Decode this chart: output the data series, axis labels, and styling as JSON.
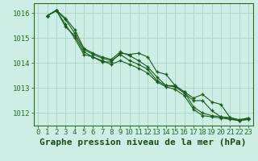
{
  "background_color": "#cceee4",
  "grid_color": "#aad4c8",
  "line_color": "#1a5c1a",
  "marker_color": "#1a5c1a",
  "xlim": [
    -0.5,
    23.5
  ],
  "ylim": [
    1011.5,
    1016.4
  ],
  "yticks": [
    1012,
    1013,
    1014,
    1015,
    1016
  ],
  "xticks": [
    0,
    1,
    2,
    3,
    4,
    5,
    6,
    7,
    8,
    9,
    10,
    11,
    12,
    13,
    14,
    15,
    16,
    17,
    18,
    19,
    20,
    21,
    22,
    23
  ],
  "series": [
    [
      1015.9,
      1016.1,
      1015.55,
      1015.0,
      1014.35,
      1014.25,
      1014.1,
      1013.95,
      1014.1,
      1013.95,
      1013.8,
      1013.6,
      1013.25,
      1013.05,
      1012.95,
      1012.7,
      1012.15,
      1011.9,
      1011.85,
      1011.8,
      1011.75,
      1011.7,
      1011.75
    ],
    [
      1015.9,
      1016.1,
      1015.75,
      1015.2,
      1014.55,
      1014.35,
      1014.2,
      1014.1,
      1014.35,
      1014.1,
      1013.95,
      1013.75,
      1013.3,
      1013.1,
      1013.05,
      1012.8,
      1012.5,
      1012.5,
      1012.1,
      1011.85,
      1011.78,
      1011.7,
      1011.75
    ],
    [
      1015.9,
      1016.12,
      1015.8,
      1015.35,
      1014.6,
      1014.4,
      1014.25,
      1014.15,
      1014.45,
      1014.3,
      1014.1,
      1013.85,
      1013.45,
      1013.1,
      1013.1,
      1012.85,
      1012.6,
      1012.75,
      1012.45,
      1012.35,
      1011.82,
      1011.73,
      1011.8
    ],
    [
      1015.9,
      1016.12,
      1015.45,
      1015.1,
      1014.45,
      1014.25,
      1014.05,
      1014.05,
      1014.4,
      1014.35,
      1014.4,
      1014.25,
      1013.65,
      1013.55,
      1013.1,
      1012.85,
      1012.25,
      1012.0,
      1011.9,
      1011.85,
      1011.82,
      1011.73,
      1011.8
    ]
  ],
  "xlabel": "Graphe pression niveau de la mer (hPa)",
  "xlabel_fontsize": 8,
  "tick_fontsize": 6.5
}
